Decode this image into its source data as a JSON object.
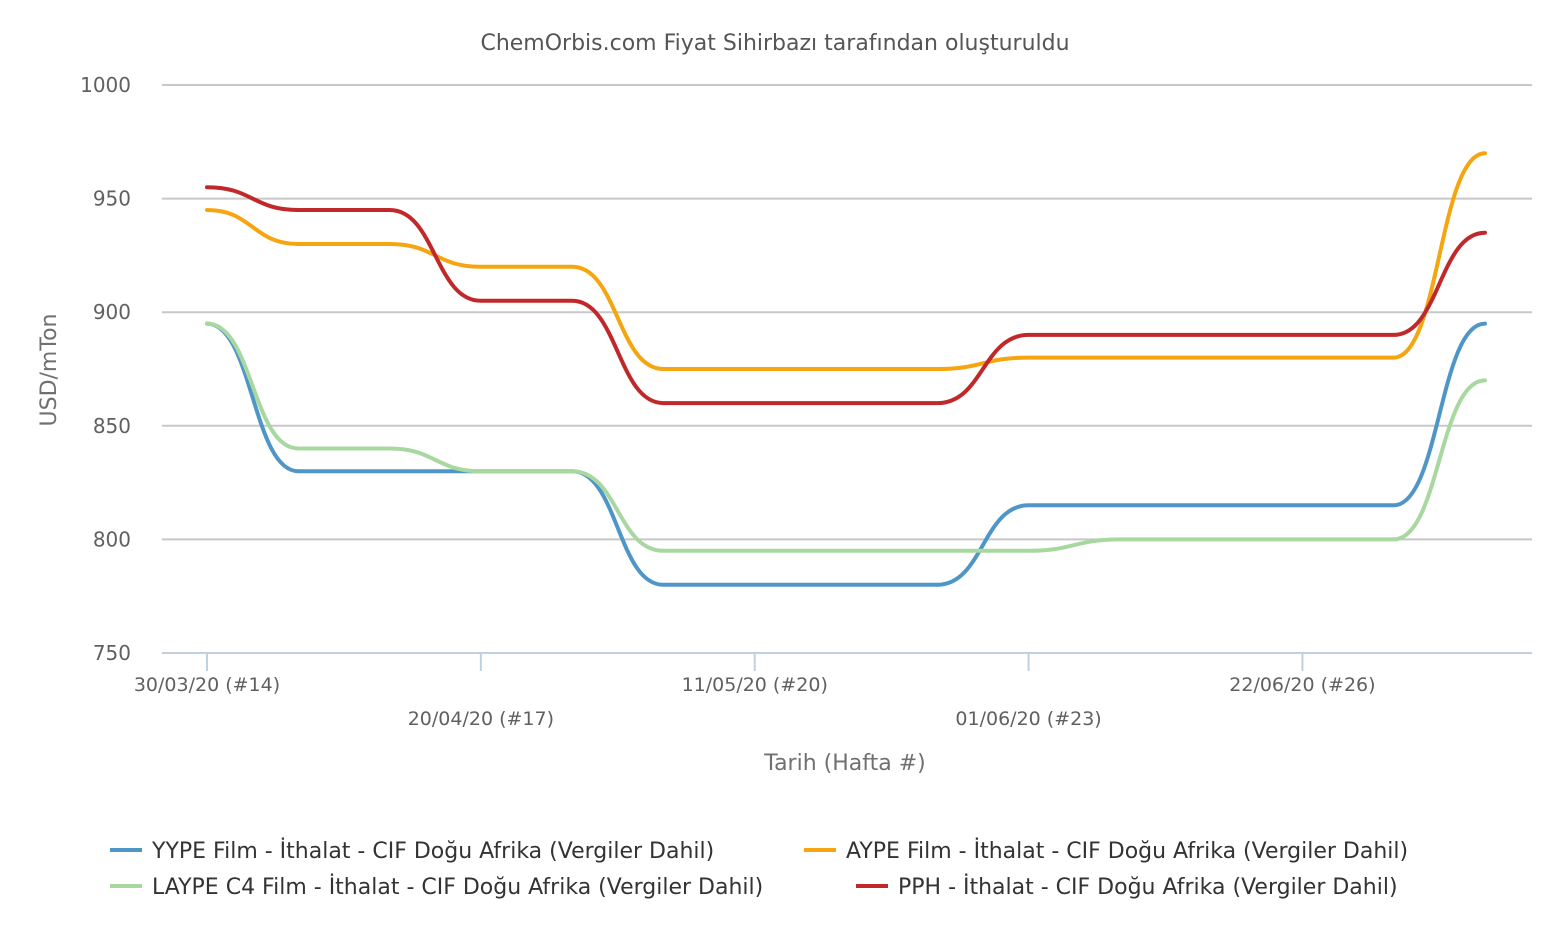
{
  "chart_data": {
    "type": "line",
    "title": "ChemOrbis.com Fiyat Sihirbazı tarafından oluşturuldu",
    "xlabel": "Tarih (Hafta #)",
    "ylabel": "USD/mTon",
    "ylim": [
      750,
      1000
    ],
    "yticks": [
      750,
      800,
      850,
      900,
      950,
      1000
    ],
    "grid": true,
    "legend_position": "bottom",
    "x_ticks": [
      {
        "week": 14,
        "label": "30/03/20 (#14)"
      },
      {
        "week": 17,
        "label": "20/04/20 (#17)"
      },
      {
        "week": 20,
        "label": "11/05/20 (#20)"
      },
      {
        "week": 23,
        "label": "01/06/20 (#23)"
      },
      {
        "week": 26,
        "label": "22/06/20 (#26)"
      }
    ],
    "x": [
      14,
      15,
      16,
      17,
      18,
      19,
      20,
      21,
      22,
      23,
      24,
      25,
      26,
      27,
      28
    ],
    "series": [
      {
        "name": "YYPE Film - İthalat - CIF Doğu Afrika (Vergiler Dahil)",
        "color": "#4e96c8",
        "values": [
          895,
          830,
          830,
          830,
          830,
          780,
          780,
          780,
          780,
          815,
          815,
          815,
          815,
          815,
          895
        ]
      },
      {
        "name": "AYPE Film - İthalat  - CIF Doğu Afrika (Vergiler Dahil)",
        "color": "#f5a50f",
        "values": [
          945,
          930,
          930,
          920,
          920,
          875,
          875,
          875,
          875,
          880,
          880,
          880,
          880,
          880,
          970
        ]
      },
      {
        "name": "LAYPE C4 Film - İthalat  - CIF Doğu Afrika (Vergiler Dahil)",
        "color": "#a8d8a0",
        "values": [
          895,
          840,
          840,
          830,
          830,
          795,
          795,
          795,
          795,
          795,
          800,
          800,
          800,
          800,
          870
        ]
      },
      {
        "name": "PPH - İthalat - CIF Doğu Afrika (Vergiler Dahil)",
        "color": "#c0282a",
        "values": [
          955,
          945,
          945,
          905,
          905,
          860,
          860,
          860,
          860,
          890,
          890,
          890,
          890,
          890,
          935
        ]
      }
    ]
  }
}
